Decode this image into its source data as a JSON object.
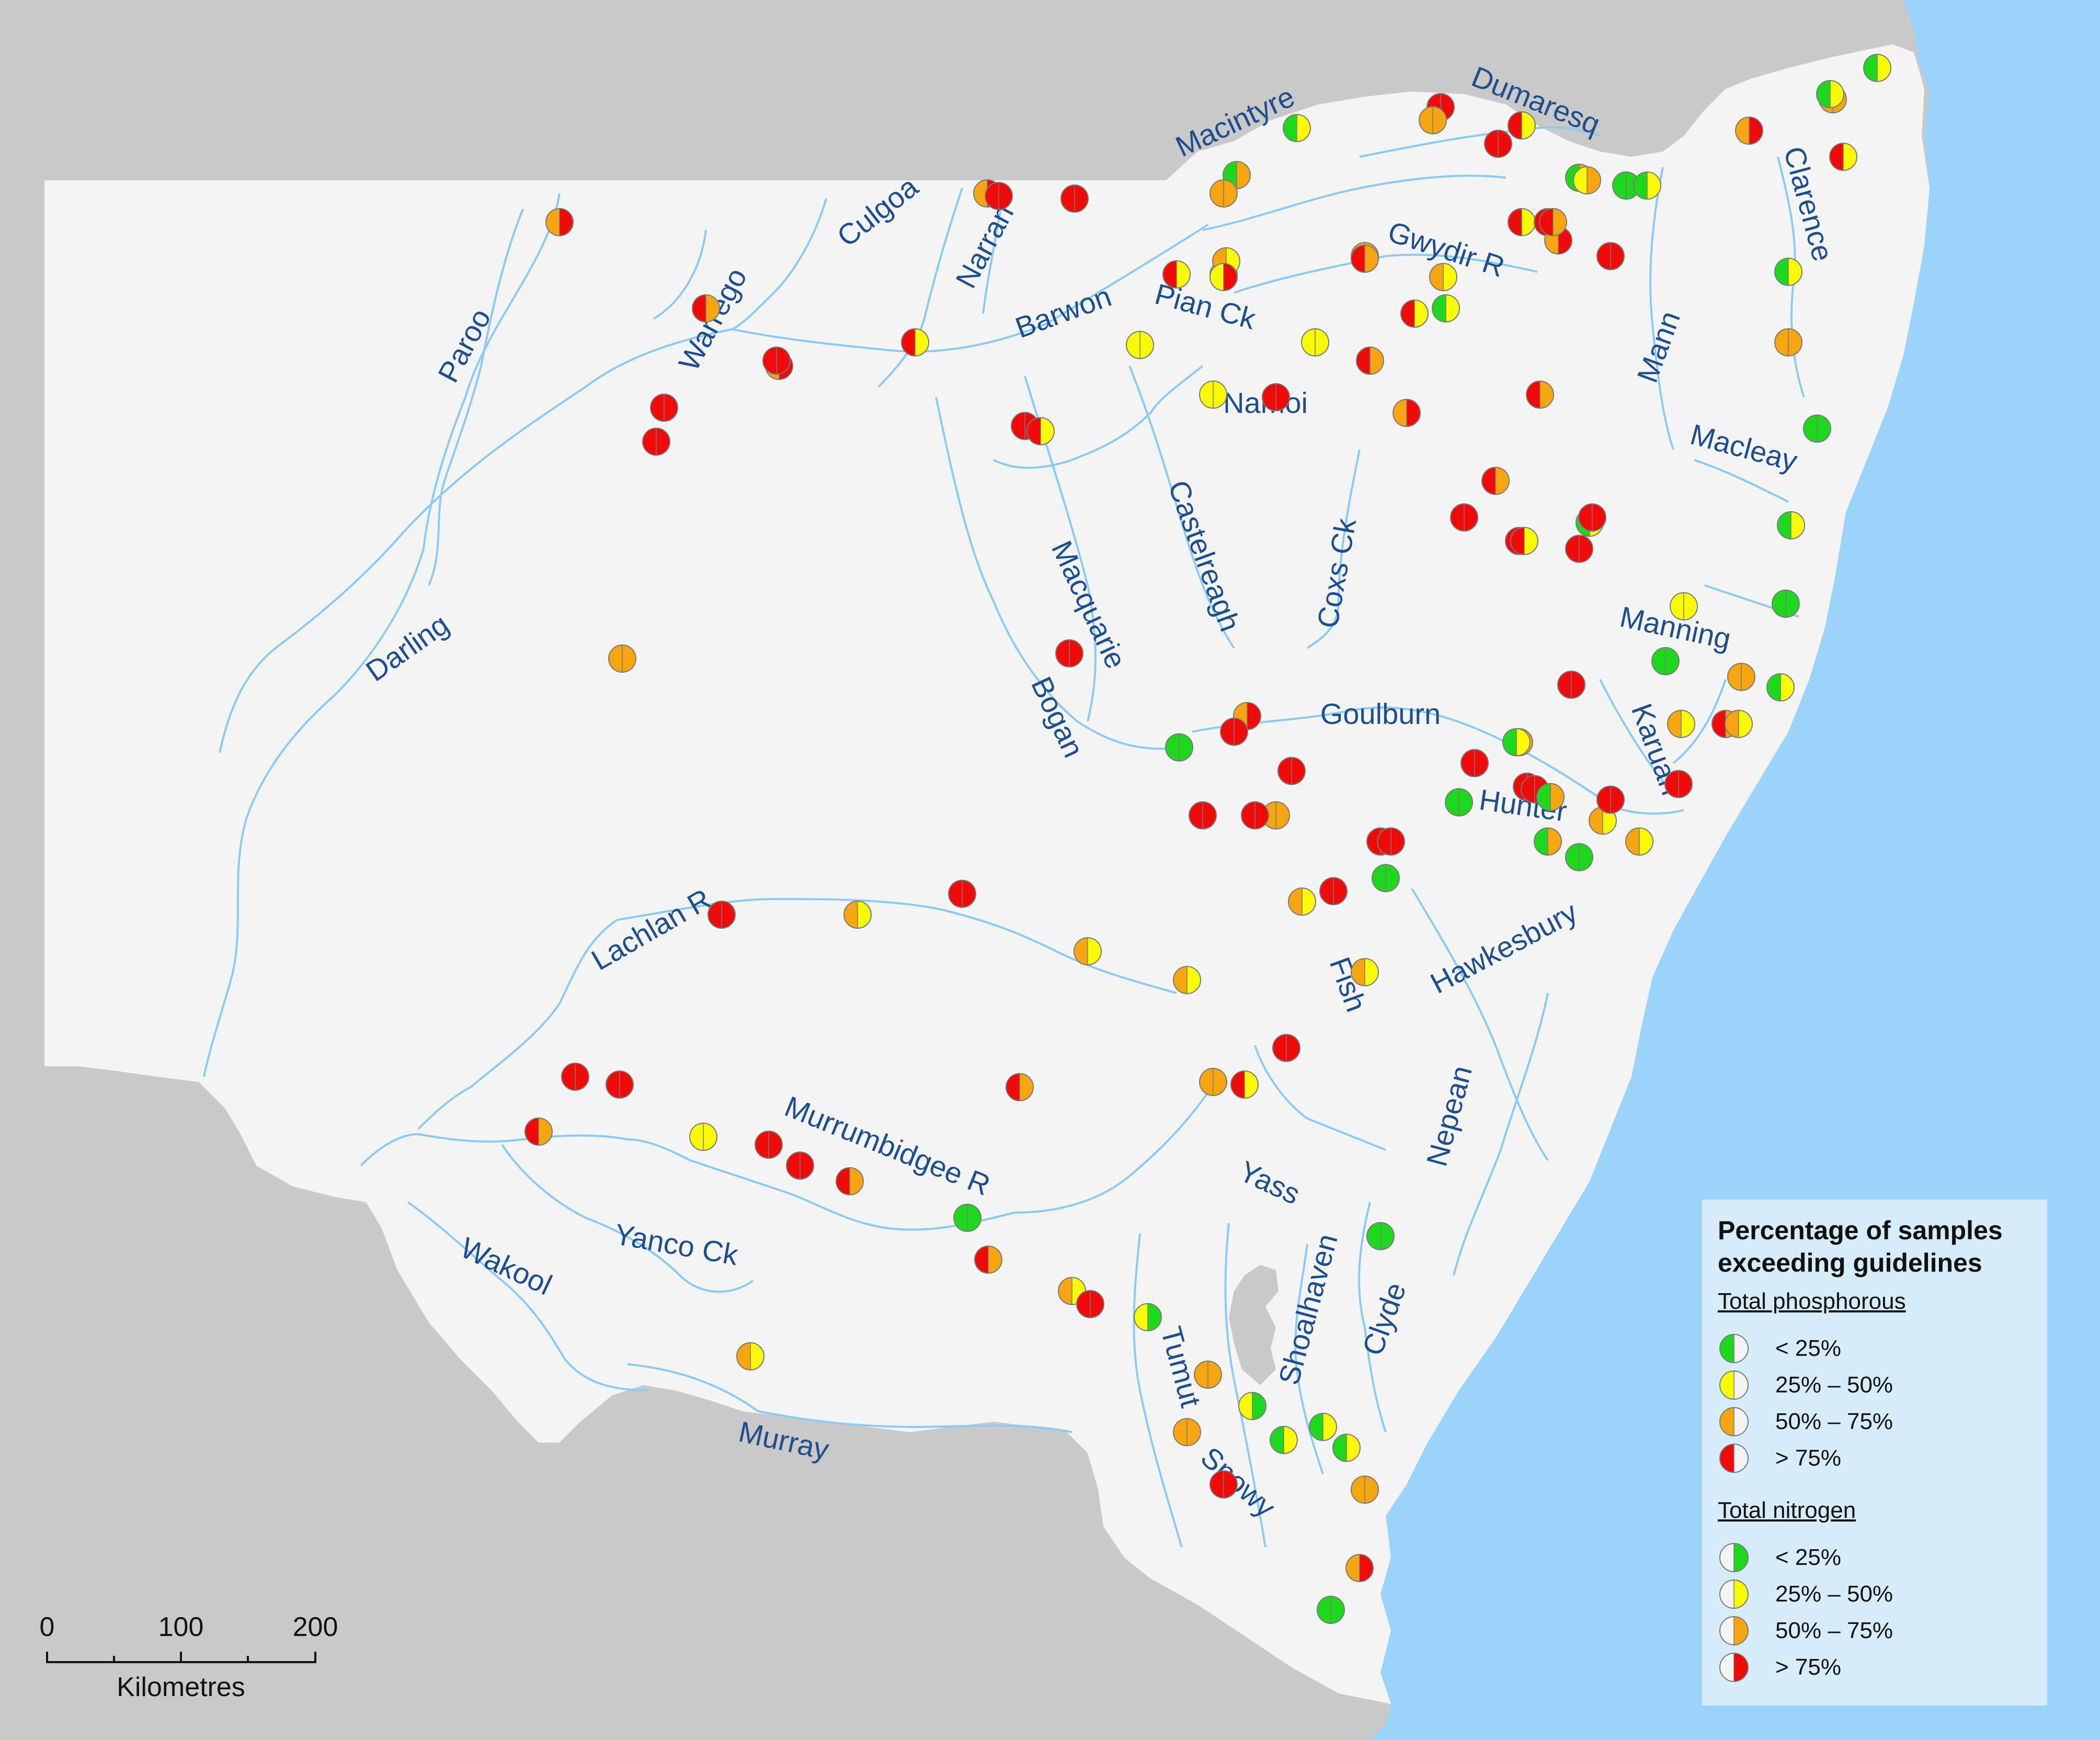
{
  "colors": {
    "ocean": "#9bd3fb",
    "land_other": "#c9c9c9",
    "nsw": "#f4f4f4",
    "river": "#8ccaf2",
    "label": "#1f4e8c",
    "lake": "#c9c9c9",
    "green": "#1ed81e",
    "yellow": "#fafa05",
    "orange": "#f7a511",
    "red": "#f00a0a",
    "legend_bg": "#d6ecfb"
  },
  "legend": {
    "title_line1": "Percentage of samples",
    "title_line2": "exceeding guidelines",
    "phosphorus_heading": "Total phosphorous",
    "nitrogen_heading": "Total nitrogen",
    "classes": [
      {
        "label": "< 25%",
        "color": "green"
      },
      {
        "label": "25% – 50%",
        "color": "yellow"
      },
      {
        "label": "50% – 75%",
        "color": "orange"
      },
      {
        "label": "> 75%",
        "color": "red"
      }
    ]
  },
  "scale_bar": {
    "ticks": [
      "0",
      "100",
      "200"
    ],
    "unit": "Kilometres"
  },
  "river_labels": [
    "Paroo",
    "Warrego",
    "Culgoa",
    "Narran",
    "Barwon",
    "Pian Ck",
    "Macintyre",
    "Dumaresq",
    "Gwydir R",
    "Clarence",
    "Mann",
    "Macleay",
    "Namoi",
    "Castelreagh",
    "Coxs Ck",
    "Macquarie",
    "Bogan",
    "Darling",
    "Manning",
    "Goulburn",
    "Karuah",
    "Hunter",
    "Hawkesbury",
    "Fish",
    "Lachlan R",
    "Murrumbidgee R",
    "Yass",
    "Nepean",
    "Shoalhaven",
    "Clyde",
    "Tumut",
    "Snowy",
    "Murray",
    "Wakool",
    "Yanco Ck"
  ],
  "sites": [
    {
      "p": "orange",
      "n": "red"
    },
    {
      "p": "red",
      "n": "orange"
    },
    {
      "p": "orange",
      "n": "red"
    },
    {
      "p": "red",
      "n": "red"
    },
    {
      "p": "red",
      "n": "red"
    },
    {
      "p": "orange",
      "n": "red"
    },
    {
      "p": "red",
      "n": "red"
    },
    {
      "p": "red",
      "n": "red"
    },
    {
      "p": "red",
      "n": "yellow"
    },
    {
      "p": "yellow",
      "n": "orange"
    },
    {
      "p": "orange",
      "n": "yellow"
    },
    {
      "p": "yellow",
      "n": "yellow"
    },
    {
      "p": "yellow",
      "n": "red"
    },
    {
      "p": "orange",
      "n": "orange"
    },
    {
      "p": "red",
      "n": "orange"
    },
    {
      "p": "orange",
      "n": "yellow"
    },
    {
      "p": "green",
      "n": "yellow"
    },
    {
      "p": "green",
      "n": "orange"
    },
    {
      "p": "red",
      "n": "red"
    },
    {
      "p": "red",
      "n": "yellow"
    },
    {
      "p": "red",
      "n": "red"
    },
    {
      "p": "red",
      "n": "yellow"
    },
    {
      "p": "green",
      "n": "orange"
    },
    {
      "p": "yellow",
      "n": "orange"
    },
    {
      "p": "green",
      "n": "green"
    },
    {
      "p": "green",
      "n": "yellow"
    },
    {
      "p": "red",
      "n": "red"
    },
    {
      "p": "orange",
      "n": "red"
    },
    {
      "p": "red",
      "n": "yellow"
    },
    {
      "p": "orange",
      "n": "orange"
    },
    {
      "p": "orange",
      "n": "orange"
    },
    {
      "p": "green",
      "n": "yellow"
    },
    {
      "p": "yellow",
      "n": "yellow"
    },
    {
      "p": "red",
      "n": "yellow"
    },
    {
      "p": "orange",
      "n": "orange"
    },
    {
      "p": "red",
      "n": "red"
    },
    {
      "p": "green",
      "n": "yellow"
    },
    {
      "p": "orange",
      "n": "orange"
    },
    {
      "p": "yellow",
      "n": "yellow"
    },
    {
      "p": "green",
      "n": "yellow"
    },
    {
      "p": "green",
      "n": "yellow"
    },
    {
      "p": "red",
      "n": "red"
    },
    {
      "p": "orange",
      "n": "red"
    },
    {
      "p": "red",
      "n": "orange"
    },
    {
      "p": "red",
      "n": "orange"
    },
    {
      "p": "red",
      "n": "red"
    },
    {
      "p": "orange",
      "n": "red"
    },
    {
      "p": "red",
      "n": "orange"
    },
    {
      "p": "red",
      "n": "yellow"
    },
    {
      "p": "green",
      "n": "yellow"
    },
    {
      "p": "red",
      "n": "red"
    },
    {
      "p": "green",
      "n": "green"
    },
    {
      "p": "red",
      "n": "red"
    },
    {
      "p": "red",
      "n": "yellow"
    },
    {
      "p": "red",
      "n": "orange"
    },
    {
      "p": "green",
      "n": "green"
    },
    {
      "p": "red",
      "n": "red"
    },
    {
      "p": "red",
      "n": "yellow"
    },
    {
      "p": "red",
      "n": "red"
    },
    {
      "p": "red",
      "n": "yellow"
    },
    {
      "p": "red",
      "n": "red"
    },
    {
      "p": "green",
      "n": "green"
    },
    {
      "p": "orange",
      "n": "orange"
    },
    {
      "p": "red",
      "n": "red"
    },
    {
      "p": "orange",
      "n": "red"
    },
    {
      "p": "orange",
      "n": "orange"
    },
    {
      "p": "red",
      "n": "red"
    },
    {
      "p": "green",
      "n": "yellow"
    },
    {
      "p": "red",
      "n": "red"
    },
    {
      "p": "orange",
      "n": "orange"
    },
    {
      "p": "red",
      "n": "red"
    },
    {
      "p": "red",
      "n": "red"
    },
    {
      "p": "red",
      "n": "red"
    },
    {
      "p": "green",
      "n": "orange"
    },
    {
      "p": "green",
      "n": "green"
    },
    {
      "p": "orange",
      "n": "yellow"
    },
    {
      "p": "red",
      "n": "red"
    },
    {
      "p": "red",
      "n": "red"
    },
    {
      "p": "red",
      "n": "red"
    },
    {
      "p": "red",
      "n": "red"
    },
    {
      "p": "green",
      "n": "green"
    },
    {
      "p": "red",
      "n": "red"
    },
    {
      "p": "red",
      "n": "red"
    },
    {
      "p": "red",
      "n": "red"
    },
    {
      "p": "orange",
      "n": "yellow"
    },
    {
      "p": "red",
      "n": "red"
    },
    {
      "p": "red",
      "n": "orange"
    },
    {
      "p": "orange",
      "n": "yellow"
    },
    {
      "p": "orange",
      "n": "yellow"
    },
    {
      "p": "green",
      "n": "yellow"
    },
    {
      "p": "yellow",
      "n": "yellow"
    },
    {
      "p": "orange",
      "n": "orange"
    },
    {
      "p": "red",
      "n": "red"
    },
    {
      "p": "red",
      "n": "red"
    },
    {
      "p": "orange",
      "n": "yellow"
    },
    {
      "p": "orange",
      "n": "yellow"
    },
    {
      "p": "orange",
      "n": "yellow"
    },
    {
      "p": "orange",
      "n": "yellow"
    },
    {
      "p": "orange",
      "n": "orange"
    },
    {
      "p": "red",
      "n": "yellow"
    },
    {
      "p": "red",
      "n": "orange"
    },
    {
      "p": "red",
      "n": "red"
    },
    {
      "p": "yellow",
      "n": "yellow"
    },
    {
      "p": "red",
      "n": "red"
    },
    {
      "p": "red",
      "n": "red"
    },
    {
      "p": "red",
      "n": "orange"
    },
    {
      "p": "red",
      "n": "red"
    },
    {
      "p": "red",
      "n": "orange"
    },
    {
      "p": "orange",
      "n": "yellow"
    },
    {
      "p": "red",
      "n": "orange"
    },
    {
      "p": "green",
      "n": "green"
    },
    {
      "p": "green",
      "n": "green"
    },
    {
      "p": "green",
      "n": "green"
    },
    {
      "p": "green",
      "n": "orange"
    },
    {
      "p": "orange",
      "n": "yellow"
    },
    {
      "p": "orange",
      "n": "yellow"
    },
    {
      "p": "red",
      "n": "red"
    },
    {
      "p": "orange",
      "n": "orange"
    },
    {
      "p": "yellow",
      "n": "green"
    },
    {
      "p": "orange",
      "n": "orange"
    },
    {
      "p": "red",
      "n": "red"
    },
    {
      "p": "yellow",
      "n": "green"
    },
    {
      "p": "green",
      "n": "green"
    },
    {
      "p": "green",
      "n": "yellow"
    },
    {
      "p": "green",
      "n": "yellow"
    },
    {
      "p": "orange",
      "n": "orange"
    },
    {
      "p": "green",
      "n": "yellow"
    },
    {
      "p": "green",
      "n": "yellow"
    },
    {
      "p": "orange",
      "n": "red"
    },
    {
      "p": "green",
      "n": "green"
    }
  ]
}
